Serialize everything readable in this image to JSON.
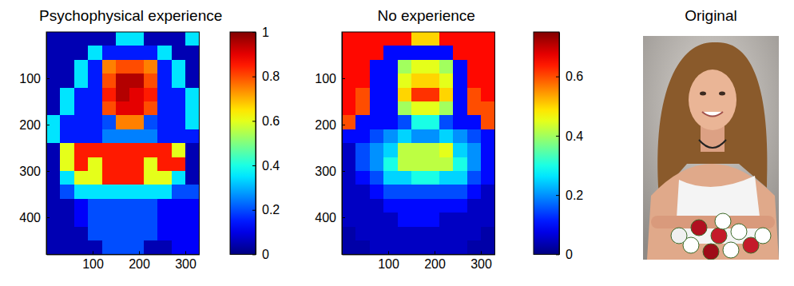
{
  "chart_data": [
    {
      "type": "heatmap",
      "title": "Psychophysical experience",
      "x": [
        15,
        45,
        75,
        105,
        135,
        165,
        195,
        225,
        255,
        285,
        315
      ],
      "y": [
        15,
        45,
        75,
        105,
        135,
        165,
        195,
        225,
        255,
        285,
        315,
        345,
        375,
        405,
        435,
        465
      ],
      "cells": [
        [
          0.05,
          0.05,
          0.05,
          0.05,
          0.05,
          0.35,
          0.35,
          0.05,
          0.05,
          0.05,
          0.35
        ],
        [
          0.05,
          0.05,
          0.05,
          0.35,
          0.15,
          0.15,
          0.15,
          0.15,
          0.35,
          0.05,
          0.05
        ],
        [
          0.05,
          0.05,
          0.35,
          0.15,
          0.75,
          0.8,
          0.8,
          0.75,
          0.15,
          0.35,
          0.05
        ],
        [
          0.05,
          0.05,
          0.35,
          0.15,
          0.8,
          0.95,
          0.95,
          0.8,
          0.15,
          0.35,
          0.05
        ],
        [
          0.05,
          0.35,
          0.15,
          0.15,
          0.85,
          0.95,
          0.9,
          0.85,
          0.15,
          0.15,
          0.35
        ],
        [
          0.05,
          0.35,
          0.15,
          0.15,
          0.8,
          0.9,
          0.9,
          0.8,
          0.15,
          0.15,
          0.35
        ],
        [
          0.35,
          0.15,
          0.15,
          0.15,
          0.2,
          0.75,
          0.75,
          0.2,
          0.15,
          0.15,
          0.35
        ],
        [
          0.35,
          0.15,
          0.15,
          0.15,
          0.25,
          0.25,
          0.25,
          0.25,
          0.15,
          0.15,
          0.15
        ],
        [
          0.05,
          0.6,
          0.85,
          0.85,
          0.85,
          0.85,
          0.85,
          0.85,
          0.85,
          0.6,
          0.05
        ],
        [
          0.05,
          0.6,
          0.85,
          0.6,
          0.85,
          0.85,
          0.85,
          0.6,
          0.85,
          0.85,
          0.05
        ],
        [
          0.05,
          0.35,
          0.6,
          0.6,
          0.85,
          0.85,
          0.85,
          0.6,
          0.6,
          0.35,
          0.05
        ],
        [
          0.05,
          0.2,
          0.35,
          0.35,
          0.35,
          0.35,
          0.35,
          0.35,
          0.35,
          0.2,
          0.2
        ],
        [
          0.05,
          0.05,
          0.12,
          0.2,
          0.2,
          0.2,
          0.2,
          0.2,
          0.12,
          0.12,
          0.12
        ],
        [
          0.05,
          0.05,
          0.12,
          0.2,
          0.2,
          0.2,
          0.2,
          0.2,
          0.12,
          0.12,
          0.12
        ],
        [
          0.05,
          0.05,
          0.05,
          0.2,
          0.2,
          0.2,
          0.2,
          0.2,
          0.12,
          0.12,
          0.12
        ],
        [
          0.05,
          0.05,
          0.05,
          0.05,
          0.2,
          0.2,
          0.2,
          0.05,
          0.05,
          0.12,
          0.12
        ]
      ],
      "xlim": [
        0,
        330
      ],
      "ylim": [
        0,
        480
      ],
      "xticks": [
        100,
        200,
        300
      ],
      "yticks": [
        100,
        200,
        300,
        400
      ],
      "colorbar": {
        "range": [
          0,
          1
        ],
        "ticks": [
          0,
          0.2,
          0.4,
          0.6,
          0.8,
          1
        ]
      }
    },
    {
      "type": "heatmap",
      "title": "No experience",
      "x": [
        15,
        45,
        75,
        105,
        135,
        165,
        195,
        225,
        255,
        285,
        315
      ],
      "y": [
        15,
        45,
        75,
        105,
        135,
        165,
        195,
        225,
        255,
        285,
        315,
        345,
        375,
        405,
        435,
        465
      ],
      "cells": [
        [
          0.65,
          0.65,
          0.65,
          0.65,
          0.65,
          0.5,
          0.5,
          0.65,
          0.65,
          0.65,
          0.65
        ],
        [
          0.65,
          0.65,
          0.65,
          0.1,
          0.1,
          0.1,
          0.1,
          0.1,
          0.65,
          0.65,
          0.65
        ],
        [
          0.65,
          0.65,
          0.1,
          0.1,
          0.4,
          0.45,
          0.45,
          0.4,
          0.1,
          0.65,
          0.65
        ],
        [
          0.65,
          0.65,
          0.1,
          0.1,
          0.45,
          0.5,
          0.5,
          0.45,
          0.1,
          0.65,
          0.65
        ],
        [
          0.65,
          0.6,
          0.1,
          0.1,
          0.5,
          0.62,
          0.62,
          0.5,
          0.1,
          0.6,
          0.65
        ],
        [
          0.65,
          0.6,
          0.1,
          0.1,
          0.4,
          0.45,
          0.45,
          0.4,
          0.1,
          0.6,
          0.6
        ],
        [
          0.6,
          0.1,
          0.1,
          0.1,
          0.15,
          0.3,
          0.3,
          0.15,
          0.1,
          0.1,
          0.6
        ],
        [
          0.1,
          0.1,
          0.15,
          0.2,
          0.25,
          0.2,
          0.2,
          0.25,
          0.2,
          0.15,
          0.1
        ],
        [
          0.05,
          0.15,
          0.2,
          0.25,
          0.42,
          0.42,
          0.42,
          0.45,
          0.25,
          0.2,
          0.1
        ],
        [
          0.05,
          0.15,
          0.2,
          0.3,
          0.42,
          0.42,
          0.42,
          0.42,
          0.3,
          0.2,
          0.1
        ],
        [
          0.05,
          0.1,
          0.15,
          0.25,
          0.25,
          0.3,
          0.3,
          0.25,
          0.25,
          0.15,
          0.1
        ],
        [
          0.05,
          0.05,
          0.1,
          0.15,
          0.15,
          0.15,
          0.15,
          0.15,
          0.15,
          0.1,
          0.05
        ],
        [
          0.05,
          0.05,
          0.05,
          0.1,
          0.1,
          0.1,
          0.1,
          0.1,
          0.1,
          0.05,
          0.05
        ],
        [
          0.05,
          0.05,
          0.05,
          0.05,
          0.1,
          0.1,
          0.1,
          0.05,
          0.05,
          0.05,
          0.05
        ],
        [
          0.03,
          0.05,
          0.05,
          0.05,
          0.05,
          0.05,
          0.05,
          0.05,
          0.05,
          0.05,
          0.03
        ],
        [
          0.03,
          0.03,
          0.05,
          0.05,
          0.05,
          0.05,
          0.05,
          0.05,
          0.05,
          0.03,
          0.03
        ]
      ],
      "xlim": [
        0,
        330
      ],
      "ylim": [
        0,
        480
      ],
      "xticks": [
        100,
        200,
        300
      ],
      "yticks": [
        100,
        200,
        300,
        400
      ],
      "colorbar": {
        "range": [
          0,
          0.75
        ],
        "ticks": [
          0,
          0.2,
          0.4,
          0.6
        ]
      }
    },
    {
      "type": "image",
      "title": "Original"
    }
  ]
}
